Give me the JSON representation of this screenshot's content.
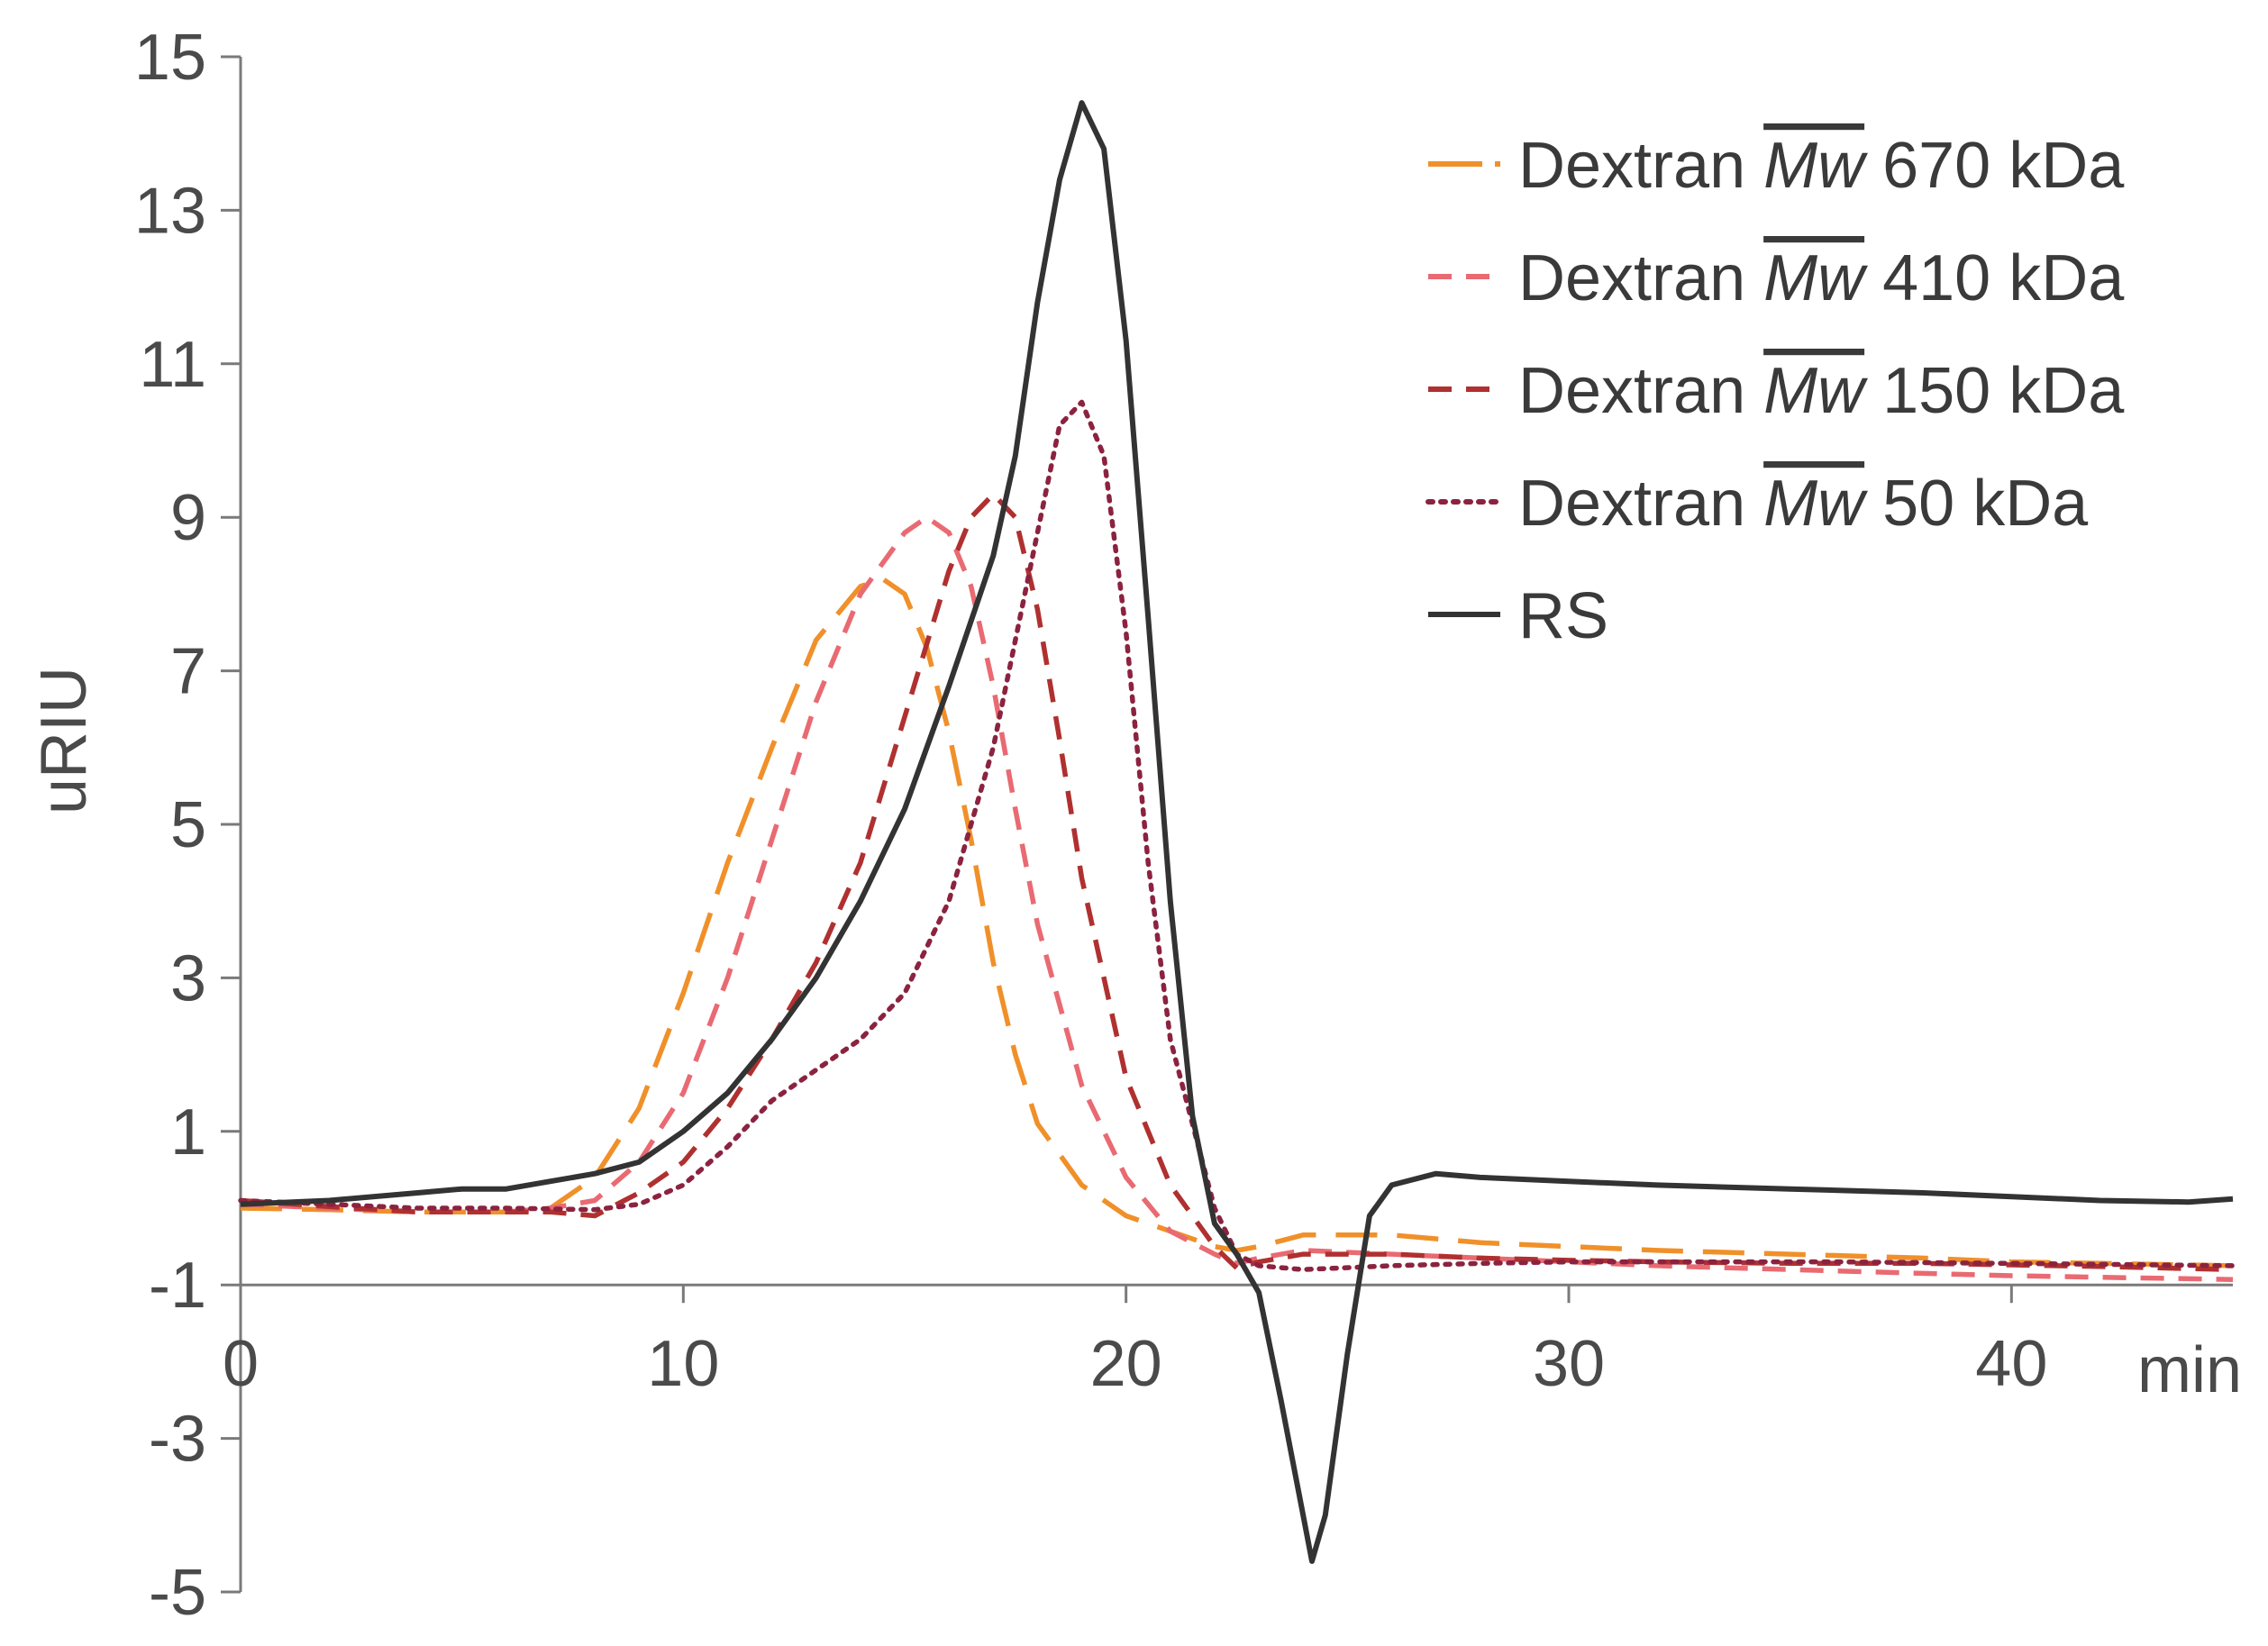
{
  "chart_data": {
    "type": "line",
    "title": "",
    "xlabel": "min",
    "ylabel": "uRIU",
    "xlim": [
      0,
      45
    ],
    "ylim": [
      -5,
      15
    ],
    "x_ticks": [
      0,
      10,
      20,
      30,
      40
    ],
    "x_tick_labels": [
      "0",
      "10",
      "20",
      "30",
      "40"
    ],
    "y_ticks": [
      15,
      13,
      11,
      9,
      7,
      5,
      3,
      1,
      -1,
      -3,
      -5
    ],
    "y_tick_labels": [
      "15",
      "13",
      "11",
      "9",
      "7",
      "5",
      "3",
      "1",
      "-1",
      "-3",
      "-5"
    ],
    "x_axis_crosses_at": -1,
    "grid": false,
    "legend_position": "top-right",
    "series": [
      {
        "name": "Dextran Mw 670 kDa",
        "legend_prefix": "Dextran ",
        "legend_mw": "Mw",
        "legend_suffix": " 670 kDa",
        "color": "#f0902a",
        "style": "long-dash",
        "points": [
          [
            0,
            0
          ],
          [
            2,
            -0.02
          ],
          [
            4,
            -0.05
          ],
          [
            6,
            -0.05
          ],
          [
            7,
            0.0
          ],
          [
            8,
            0.4
          ],
          [
            9,
            1.3
          ],
          [
            10,
            2.8
          ],
          [
            11,
            4.5
          ],
          [
            12,
            6.0
          ],
          [
            13,
            7.4
          ],
          [
            14,
            8.1
          ],
          [
            14.5,
            8.2
          ],
          [
            15,
            8.0
          ],
          [
            15.5,
            7.3
          ],
          [
            16,
            6.2
          ],
          [
            16.5,
            4.8
          ],
          [
            17,
            3.2
          ],
          [
            17.5,
            2.0
          ],
          [
            18,
            1.1
          ],
          [
            19,
            0.3
          ],
          [
            20,
            -0.1
          ],
          [
            21,
            -0.3
          ],
          [
            22,
            -0.5
          ],
          [
            22.5,
            -0.55
          ],
          [
            23,
            -0.5
          ],
          [
            24,
            -0.35
          ],
          [
            26,
            -0.35
          ],
          [
            28,
            -0.45
          ],
          [
            30,
            -0.5
          ],
          [
            32,
            -0.55
          ],
          [
            35,
            -0.6
          ],
          [
            38,
            -0.65
          ],
          [
            40,
            -0.7
          ],
          [
            42,
            -0.72
          ],
          [
            45,
            -0.75
          ]
        ]
      },
      {
        "name": "Dextran Mw 410 kDa",
        "legend_prefix": "Dextran ",
        "legend_mw": "Mw",
        "legend_suffix": " 410 kDa",
        "color": "#e96a72",
        "style": "dash",
        "points": [
          [
            0,
            0.05
          ],
          [
            2,
            0.0
          ],
          [
            4,
            -0.05
          ],
          [
            6,
            -0.05
          ],
          [
            7,
            0.0
          ],
          [
            8,
            0.1
          ],
          [
            9,
            0.6
          ],
          [
            10,
            1.5
          ],
          [
            11,
            3.0
          ],
          [
            12,
            4.8
          ],
          [
            13,
            6.6
          ],
          [
            14,
            8.0
          ],
          [
            15,
            8.8
          ],
          [
            15.5,
            9.0
          ],
          [
            16,
            8.8
          ],
          [
            16.5,
            8.1
          ],
          [
            17,
            6.8
          ],
          [
            17.5,
            5.2
          ],
          [
            18,
            3.7
          ],
          [
            19,
            1.6
          ],
          [
            20,
            0.4
          ],
          [
            21,
            -0.3
          ],
          [
            22,
            -0.6
          ],
          [
            22.5,
            -0.72
          ],
          [
            23,
            -0.65
          ],
          [
            24,
            -0.55
          ],
          [
            26,
            -0.6
          ],
          [
            28,
            -0.65
          ],
          [
            30,
            -0.7
          ],
          [
            32,
            -0.75
          ],
          [
            35,
            -0.8
          ],
          [
            38,
            -0.85
          ],
          [
            40,
            -0.88
          ],
          [
            42,
            -0.9
          ],
          [
            45,
            -0.93
          ]
        ]
      },
      {
        "name": "Dextran Mw 150 kDa",
        "legend_prefix": "Dextran ",
        "legend_mw": "Mw",
        "legend_suffix": " 150 kDa",
        "color": "#b03030",
        "style": "dash",
        "points": [
          [
            0,
            0.1
          ],
          [
            2,
            0.02
          ],
          [
            4,
            -0.05
          ],
          [
            6,
            -0.05
          ],
          [
            7,
            -0.05
          ],
          [
            8,
            -0.1
          ],
          [
            9,
            0.2
          ],
          [
            10,
            0.6
          ],
          [
            11,
            1.3
          ],
          [
            12,
            2.2
          ],
          [
            13,
            3.2
          ],
          [
            14,
            4.5
          ],
          [
            15,
            6.4
          ],
          [
            16,
            8.3
          ],
          [
            16.5,
            9.0
          ],
          [
            17,
            9.3
          ],
          [
            17.5,
            9.0
          ],
          [
            18,
            7.8
          ],
          [
            18.5,
            6.1
          ],
          [
            19,
            4.3
          ],
          [
            20,
            1.7
          ],
          [
            21,
            0.3
          ],
          [
            22,
            -0.5
          ],
          [
            22.5,
            -0.78
          ],
          [
            23,
            -0.7
          ],
          [
            24,
            -0.6
          ],
          [
            26,
            -0.6
          ],
          [
            28,
            -0.65
          ],
          [
            30,
            -0.68
          ],
          [
            32,
            -0.7
          ],
          [
            35,
            -0.72
          ],
          [
            38,
            -0.72
          ],
          [
            40,
            -0.74
          ],
          [
            42,
            -0.76
          ],
          [
            45,
            -0.8
          ]
        ]
      },
      {
        "name": "Dextran Mw 50 kDa",
        "legend_prefix": "Dextran ",
        "legend_mw": "Mw",
        "legend_suffix": " 50 kDa",
        "color": "#8b2340",
        "style": "dot",
        "points": [
          [
            0,
            0.1
          ],
          [
            2,
            0.05
          ],
          [
            4,
            0.0
          ],
          [
            6,
            0.0
          ],
          [
            8,
            -0.02
          ],
          [
            9,
            0.05
          ],
          [
            10,
            0.3
          ],
          [
            11,
            0.8
          ],
          [
            12,
            1.4
          ],
          [
            13,
            1.8
          ],
          [
            14,
            2.2
          ],
          [
            15,
            2.8
          ],
          [
            16,
            4.0
          ],
          [
            17,
            6.0
          ],
          [
            18,
            8.8
          ],
          [
            18.5,
            10.2
          ],
          [
            19,
            10.5
          ],
          [
            19.5,
            9.8
          ],
          [
            20,
            7.5
          ],
          [
            20.5,
            4.5
          ],
          [
            21,
            2.2
          ],
          [
            22,
            0.0
          ],
          [
            22.5,
            -0.6
          ],
          [
            23,
            -0.75
          ],
          [
            24,
            -0.8
          ],
          [
            26,
            -0.75
          ],
          [
            28,
            -0.72
          ],
          [
            30,
            -0.7
          ],
          [
            33,
            -0.7
          ],
          [
            36,
            -0.7
          ],
          [
            40,
            -0.72
          ],
          [
            45,
            -0.75
          ]
        ]
      },
      {
        "name": "RS",
        "legend_prefix": "RS",
        "legend_mw": "",
        "legend_suffix": "",
        "color": "#333333",
        "style": "solid",
        "points": [
          [
            0,
            0.05
          ],
          [
            2,
            0.1
          ],
          [
            4,
            0.2
          ],
          [
            5,
            0.25
          ],
          [
            6,
            0.25
          ],
          [
            7,
            0.35
          ],
          [
            8,
            0.45
          ],
          [
            9,
            0.6
          ],
          [
            10,
            1.0
          ],
          [
            11,
            1.5
          ],
          [
            12,
            2.2
          ],
          [
            13,
            3.0
          ],
          [
            14,
            4.0
          ],
          [
            15,
            5.2
          ],
          [
            16,
            6.8
          ],
          [
            17,
            8.5
          ],
          [
            17.5,
            9.8
          ],
          [
            18,
            11.8
          ],
          [
            18.5,
            13.4
          ],
          [
            19,
            14.4
          ],
          [
            19.5,
            13.8
          ],
          [
            20,
            11.3
          ],
          [
            20.5,
            7.7
          ],
          [
            21,
            4.0
          ],
          [
            21.5,
            1.2
          ],
          [
            22,
            -0.2
          ],
          [
            22.5,
            -0.6
          ],
          [
            23,
            -1.1
          ],
          [
            23.5,
            -2.5
          ],
          [
            24,
            -4.0
          ],
          [
            24.2,
            -4.6
          ],
          [
            24.5,
            -4.0
          ],
          [
            25,
            -1.9
          ],
          [
            25.5,
            -0.1
          ],
          [
            26,
            0.3
          ],
          [
            27,
            0.45
          ],
          [
            28,
            0.4
          ],
          [
            30,
            0.35
          ],
          [
            32,
            0.3
          ],
          [
            35,
            0.25
          ],
          [
            38,
            0.2
          ],
          [
            40,
            0.15
          ],
          [
            42,
            0.1
          ],
          [
            44,
            0.08
          ],
          [
            45,
            0.12
          ]
        ]
      }
    ]
  }
}
